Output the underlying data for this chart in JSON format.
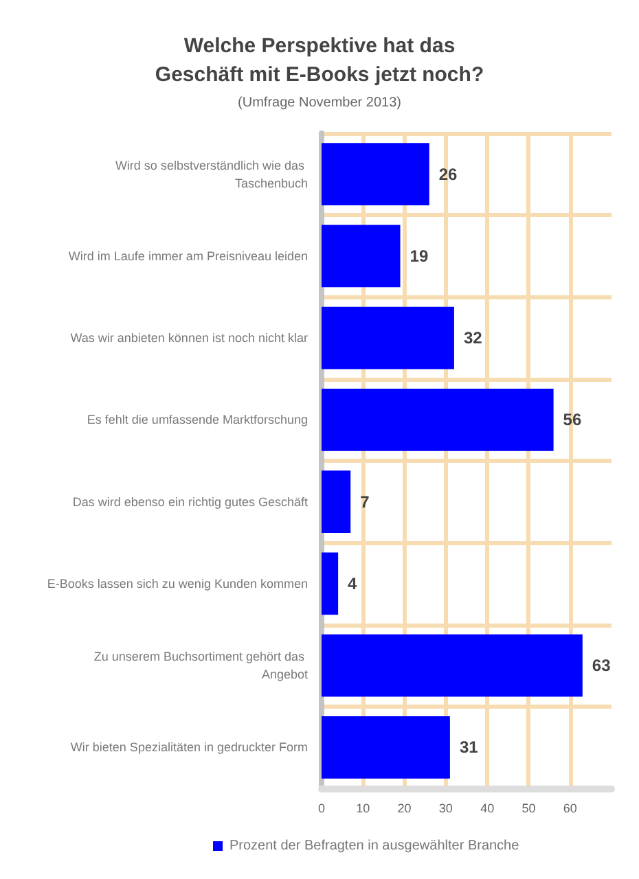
{
  "chart_data": {
    "type": "bar",
    "orientation": "horizontal",
    "title": "Welche Perspektive hat das Geschäft mit E-Books jetzt noch?",
    "subtitle": "(Umfrage November 2013)",
    "categories": [
      "Wird so selbstverständlich wie das Taschenbuch",
      "Wird im Laufe immer am Preisniveau leiden",
      "Was wir anbieten können ist noch nicht klar",
      "Es fehlt die umfassende Marktforschung",
      "Das wird ebenso ein richtig gutes Geschäft",
      "E-Books lassen sich zu wenig Kunden kommen",
      "Zu unserem Buchsortiment gehört das Angebot",
      "Wir bieten Spezialitäten in gedruckter Form"
    ],
    "series": [
      {
        "name": "Prozent der Befragten in ausgewählter Branche",
        "color": "#0000ff",
        "values": [
          26,
          19,
          32,
          56,
          7,
          4,
          63,
          31
        ]
      }
    ],
    "xlim": [
      0,
      70
    ],
    "xticks": [
      0,
      10,
      20,
      30,
      40,
      50,
      60
    ],
    "grid": true,
    "legend": "bottom",
    "data_labels": true
  }
}
